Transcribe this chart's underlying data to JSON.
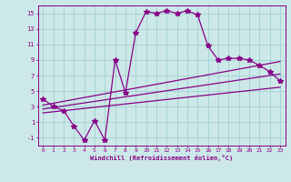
{
  "xlabel": "Windchill (Refroidissement éolien,°C)",
  "bg_color": "#cce8e8",
  "line_color": "#880088",
  "xlim": [
    -0.5,
    23.5
  ],
  "ylim": [
    -2,
    16
  ],
  "xticks": [
    0,
    1,
    2,
    3,
    4,
    5,
    6,
    7,
    8,
    9,
    10,
    11,
    12,
    13,
    14,
    15,
    16,
    17,
    18,
    19,
    20,
    21,
    22,
    23
  ],
  "yticks": [
    -1,
    1,
    3,
    5,
    7,
    9,
    11,
    13,
    15
  ],
  "main_x": [
    0,
    1,
    2,
    3,
    4,
    5,
    6,
    7,
    8,
    9,
    10,
    11,
    12,
    13,
    14,
    15,
    16,
    17,
    18,
    19,
    20,
    21,
    22,
    23
  ],
  "main_y": [
    4,
    3,
    2.5,
    0.5,
    -1.3,
    1.2,
    -1.3,
    9.0,
    4.8,
    12.5,
    15.2,
    15.0,
    15.3,
    15.0,
    15.3,
    14.8,
    10.8,
    9.0,
    9.2,
    9.2,
    9.0,
    8.3,
    7.5,
    6.3
  ],
  "line1_x": [
    0,
    23
  ],
  "line1_y": [
    2.2,
    5.5
  ],
  "line2_x": [
    0,
    23
  ],
  "line2_y": [
    2.7,
    7.2
  ],
  "line3_x": [
    0,
    23
  ],
  "line3_y": [
    3.2,
    8.8
  ],
  "grid_color": "#99cccc",
  "marker": "*",
  "markersize": 4,
  "linewidth": 0.9
}
